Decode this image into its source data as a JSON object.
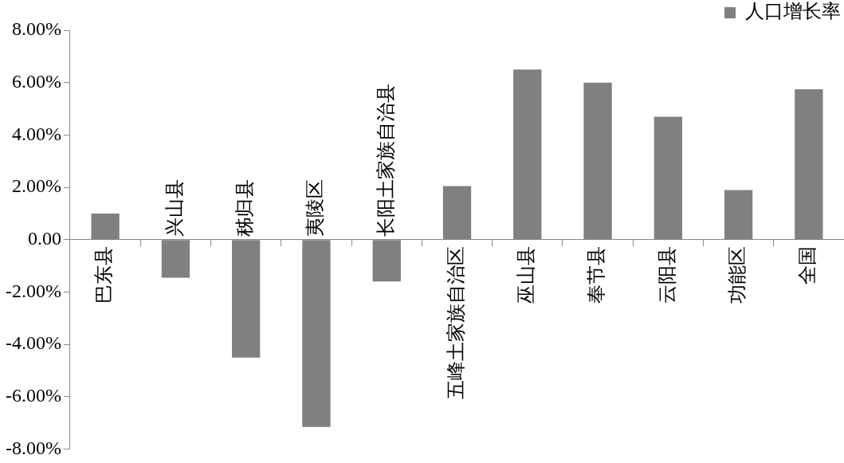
{
  "chart_data": {
    "type": "bar",
    "categories": [
      "巴东县",
      "兴山县",
      "秭归县",
      "夷陵区",
      "长阳土家族自治县",
      "五峰土家族自治区",
      "巫山县",
      "奉节县",
      "云阳县",
      "功能区",
      "全国"
    ],
    "series": [
      {
        "name": "人口增长率",
        "color": "#808080",
        "values": [
          1.0,
          -1.45,
          -4.5,
          -7.15,
          -1.6,
          2.05,
          6.5,
          6.0,
          4.7,
          1.9,
          5.75
        ]
      }
    ],
    "ylim": [
      -8,
      8
    ],
    "yticks": [
      {
        "value": -8,
        "label": "-8.00%"
      },
      {
        "value": -6,
        "label": "-6.00%"
      },
      {
        "value": -4,
        "label": "-4.00%"
      },
      {
        "value": -2,
        "label": "-2.00%"
      },
      {
        "value": 0,
        "label": "0.00"
      },
      {
        "value": 2,
        "label": "2.00%"
      },
      {
        "value": 4,
        "label": "4.00%"
      },
      {
        "value": 6,
        "label": "6.00%"
      },
      {
        "value": 8,
        "label": "8.00%"
      }
    ],
    "grid": false,
    "legend": "top right"
  }
}
